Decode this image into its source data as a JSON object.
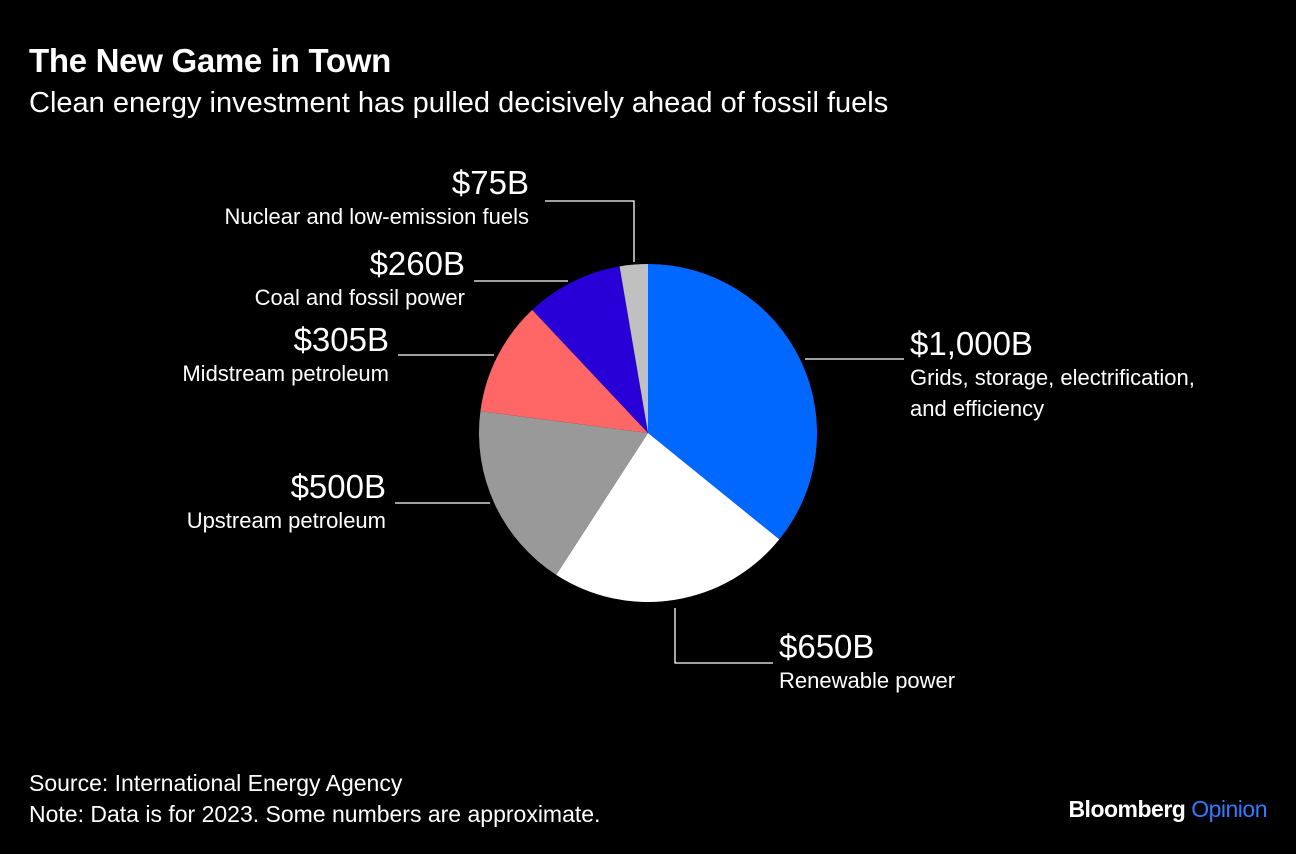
{
  "header": {
    "title": "The New Game in Town",
    "subtitle": "Clean energy investment has pulled decisively ahead of fossil fuels"
  },
  "chart_data": {
    "type": "pie",
    "title": "The New Game in Town",
    "subtitle": "Clean energy investment has pulled decisively ahead of fossil fuels",
    "start_angle": "12 o'clock, clockwise",
    "slices": [
      {
        "label": "Grids, storage, electrification, and efficiency",
        "value": 1000,
        "value_label": "$1,000B",
        "color": "#0068ff"
      },
      {
        "label": "Renewable power",
        "value": 650,
        "value_label": "$650B",
        "color": "#ffffff"
      },
      {
        "label": "Upstream petroleum",
        "value": 500,
        "value_label": "$500B",
        "color": "#999999"
      },
      {
        "label": "Midstream petroleum",
        "value": 305,
        "value_label": "$305B",
        "color": "#ff6666"
      },
      {
        "label": "Coal and fossil power",
        "value": 260,
        "value_label": "$260B",
        "color": "#2800d7"
      },
      {
        "label": "Nuclear and low-emission fuels",
        "value": 75,
        "value_label": "$75B",
        "color": "#c0c0c0"
      }
    ]
  },
  "footer": {
    "source": "Source: International Energy Agency",
    "note": "Note: Data is for 2023. Some numbers are approximate.",
    "logo_brand": "Bloomberg",
    "logo_section": "Opinion"
  }
}
